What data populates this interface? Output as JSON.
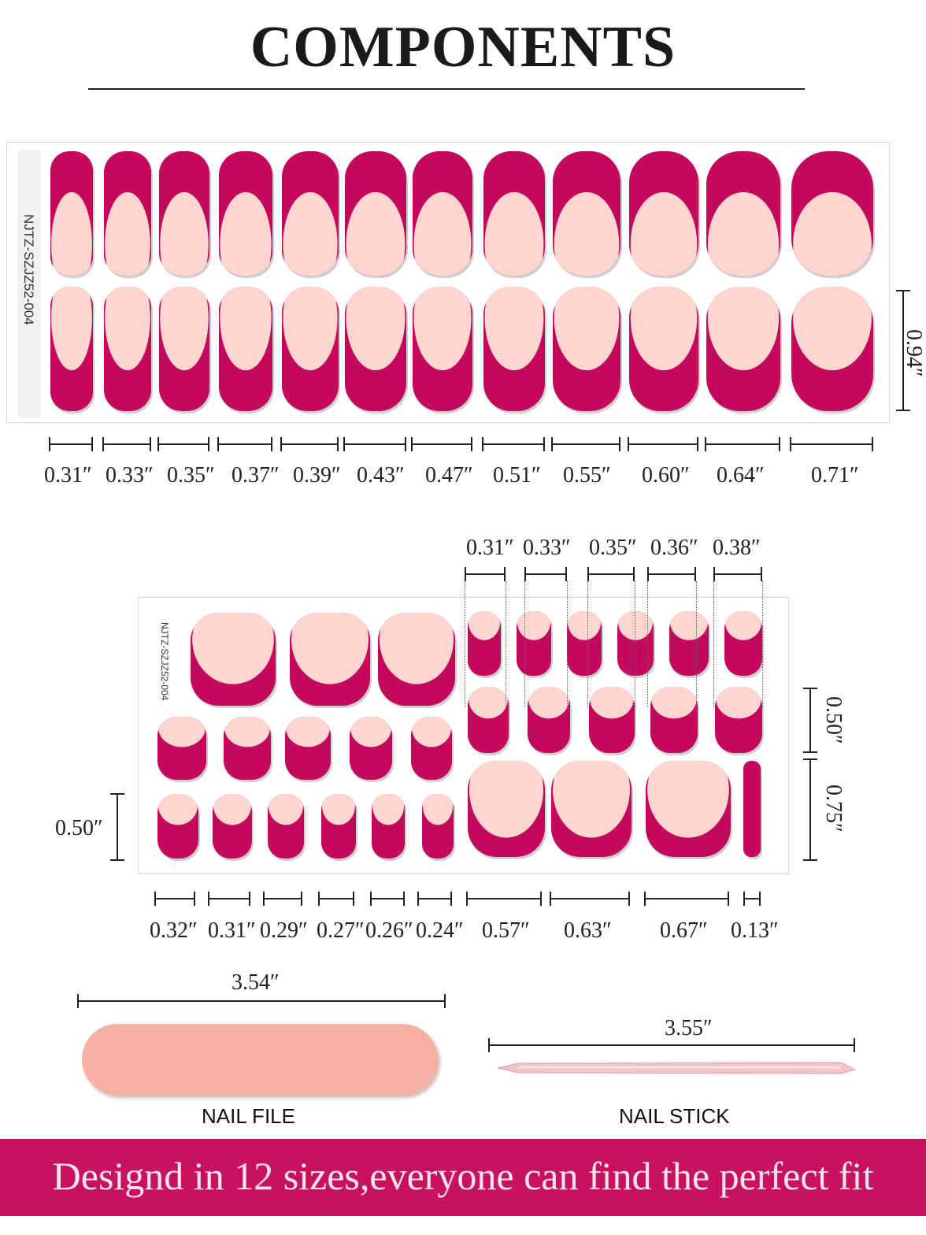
{
  "header": {
    "title": "COMPONENTS"
  },
  "colors": {
    "nail_main": "#c4085c",
    "nail_tip": "#fcd6cf",
    "banner": "#c8115f",
    "nail_file": "#f6b0a4"
  },
  "fingernail_sheet": {
    "code": "NJTZ-SZJZ52-004",
    "width_labels": [
      "0.31″",
      "0.33″",
      "0.35″",
      "0.37″",
      "0.39″",
      "0.43″",
      "0.47″",
      "0.51″",
      "0.55″",
      "0.60″",
      "0.64″",
      "0.71″"
    ],
    "height_label": "0.94″"
  },
  "toenail_sheet": {
    "code": "NJTZ-SZJZ52-004",
    "top_width_labels": [
      "0.31″",
      "0.33″",
      "0.35″",
      "0.36″",
      "0.38″"
    ],
    "bottom_width_labels": [
      "0.32″",
      "0.31″",
      "0.29″",
      "0.27″",
      "0.26″",
      "0.24″",
      "0.57″",
      "0.63″",
      "0.67″",
      "0.13″"
    ],
    "left_height_label": "0.50″",
    "right_height_label_small": "0.50″",
    "right_height_label_large": "0.75″"
  },
  "tools": {
    "nail_file": {
      "label": "NAIL FILE",
      "length": "3.54″"
    },
    "nail_stick": {
      "label": "NAIL STICK",
      "length": "3.55″"
    }
  },
  "banner": {
    "text": "Designd in 12 sizes,everyone can find the perfect fit"
  }
}
